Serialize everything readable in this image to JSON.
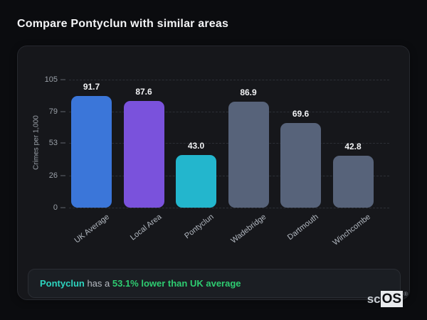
{
  "title": "Compare Pontyclun with similar areas",
  "chart_data": {
    "type": "bar",
    "categories": [
      "UK Average",
      "Local Area",
      "Pontyclun",
      "Wadebridge",
      "Dartmouth",
      "Winchcombe"
    ],
    "values": [
      91.7,
      87.6,
      43.0,
      86.9,
      69.6,
      42.8
    ],
    "value_labels": [
      "91.7",
      "87.6",
      "43.0",
      "86.9",
      "69.6",
      "42.8"
    ],
    "title": "",
    "xlabel": "",
    "ylabel": "Crimes per 1,000",
    "yticks": [
      0,
      26,
      53,
      79,
      105
    ],
    "ylim": [
      0,
      105
    ],
    "grid": "horizontal-dashed",
    "legend": "none",
    "x_tick_rotation_deg": -38,
    "bar_colors": [
      "#3b76d9",
      "#7a52dc",
      "#23b6cd",
      "#57637a",
      "#57637a",
      "#57637a"
    ]
  },
  "note": {
    "area_name": "Pontyclun",
    "connector": " has a ",
    "stat_text": "53.1% lower than UK average"
  },
  "logo": {
    "prefix": "sc",
    "boxed": "OS",
    "registered_mark": "®"
  },
  "colors": {
    "page_background": "#0b0c0f",
    "card_background": "#16171b",
    "note_background": "#1b1e23",
    "area_highlight": "#2dd4bf",
    "stat_green": "#2ecc71",
    "bar_blue": "#3b76d9",
    "bar_purple": "#7a52dc",
    "bar_cyan": "#23b6cd",
    "bar_gray": "#57637a"
  }
}
